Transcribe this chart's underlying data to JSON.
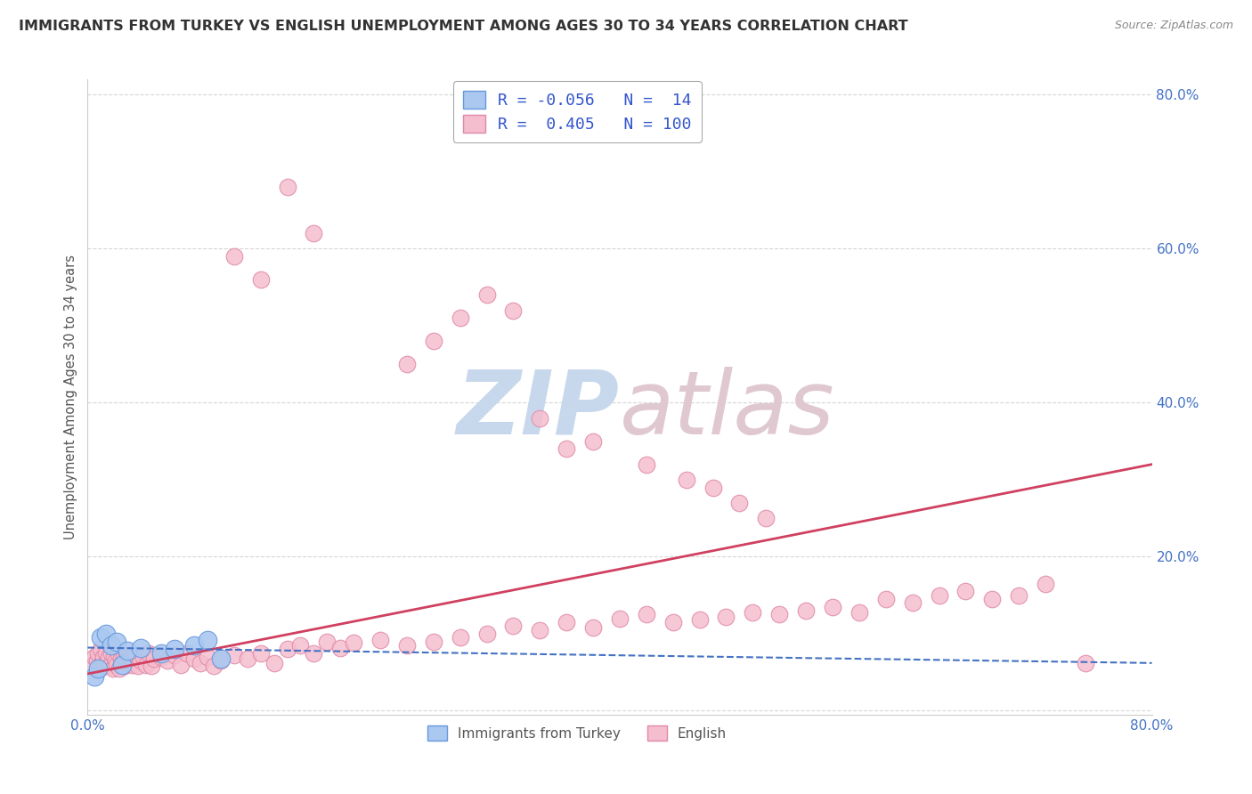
{
  "title": "IMMIGRANTS FROM TURKEY VS ENGLISH UNEMPLOYMENT AMONG AGES 30 TO 34 YEARS CORRELATION CHART",
  "source": "Source: ZipAtlas.com",
  "ylabel": "Unemployment Among Ages 30 to 34 years",
  "xlim": [
    0.0,
    0.8
  ],
  "ylim": [
    -0.005,
    0.82
  ],
  "legend": {
    "series1_color": "#aac8f0",
    "series1_edge": "#6699dd",
    "series1_label": "Immigrants from Turkey",
    "series1_R": "-0.056",
    "series1_N": "14",
    "series2_color": "#f5bece",
    "series2_edge": "#e088a8",
    "series2_label": "English",
    "series2_R": "0.405",
    "series2_N": "100"
  },
  "background_color": "#ffffff",
  "grid_color": "#cccccc",
  "title_color": "#333333",
  "axis_label_color": "#4472c4",
  "turkey_x": [
    0.005,
    0.008,
    0.01,
    0.014,
    0.018,
    0.022,
    0.026,
    0.03,
    0.04,
    0.055,
    0.065,
    0.08,
    0.09,
    0.1
  ],
  "turkey_y": [
    0.045,
    0.055,
    0.095,
    0.1,
    0.085,
    0.09,
    0.06,
    0.078,
    0.082,
    0.075,
    0.08,
    0.085,
    0.092,
    0.068
  ],
  "english_x": [
    0.003,
    0.005,
    0.007,
    0.008,
    0.009,
    0.01,
    0.011,
    0.012,
    0.013,
    0.014,
    0.015,
    0.016,
    0.017,
    0.018,
    0.019,
    0.02,
    0.021,
    0.022,
    0.023,
    0.024,
    0.025,
    0.026,
    0.027,
    0.028,
    0.029,
    0.03,
    0.032,
    0.034,
    0.036,
    0.038,
    0.04,
    0.042,
    0.044,
    0.046,
    0.048,
    0.05,
    0.055,
    0.06,
    0.065,
    0.07,
    0.075,
    0.08,
    0.085,
    0.09,
    0.095,
    0.1,
    0.11,
    0.12,
    0.13,
    0.14,
    0.15,
    0.16,
    0.17,
    0.18,
    0.19,
    0.2,
    0.22,
    0.24,
    0.26,
    0.28,
    0.3,
    0.32,
    0.34,
    0.36,
    0.38,
    0.4,
    0.42,
    0.44,
    0.46,
    0.48,
    0.5,
    0.52,
    0.54,
    0.56,
    0.58,
    0.6,
    0.62,
    0.64,
    0.66,
    0.68,
    0.7,
    0.72,
    0.38,
    0.42,
    0.45,
    0.47,
    0.49,
    0.51,
    0.24,
    0.26,
    0.28,
    0.3,
    0.32,
    0.34,
    0.36,
    0.15,
    0.17,
    0.11,
    0.13,
    0.75
  ],
  "english_y": [
    0.06,
    0.07,
    0.065,
    0.075,
    0.055,
    0.08,
    0.065,
    0.07,
    0.06,
    0.075,
    0.065,
    0.07,
    0.06,
    0.075,
    0.055,
    0.07,
    0.065,
    0.06,
    0.075,
    0.055,
    0.068,
    0.062,
    0.07,
    0.058,
    0.072,
    0.065,
    0.068,
    0.06,
    0.072,
    0.058,
    0.065,
    0.07,
    0.06,
    0.075,
    0.058,
    0.068,
    0.07,
    0.065,
    0.072,
    0.06,
    0.075,
    0.068,
    0.062,
    0.07,
    0.058,
    0.065,
    0.072,
    0.068,
    0.075,
    0.062,
    0.08,
    0.085,
    0.075,
    0.09,
    0.082,
    0.088,
    0.092,
    0.085,
    0.09,
    0.095,
    0.1,
    0.11,
    0.105,
    0.115,
    0.108,
    0.12,
    0.125,
    0.115,
    0.118,
    0.122,
    0.128,
    0.125,
    0.13,
    0.135,
    0.128,
    0.145,
    0.14,
    0.15,
    0.155,
    0.145,
    0.15,
    0.165,
    0.35,
    0.32,
    0.3,
    0.29,
    0.27,
    0.25,
    0.45,
    0.48,
    0.51,
    0.54,
    0.52,
    0.38,
    0.34,
    0.68,
    0.62,
    0.59,
    0.56,
    0.062
  ],
  "english_line_x": [
    0.0,
    0.8
  ],
  "english_line_y": [
    0.048,
    0.32
  ],
  "turkey_line_x": [
    0.0,
    0.8
  ],
  "turkey_line_y": [
    0.082,
    0.062
  ]
}
